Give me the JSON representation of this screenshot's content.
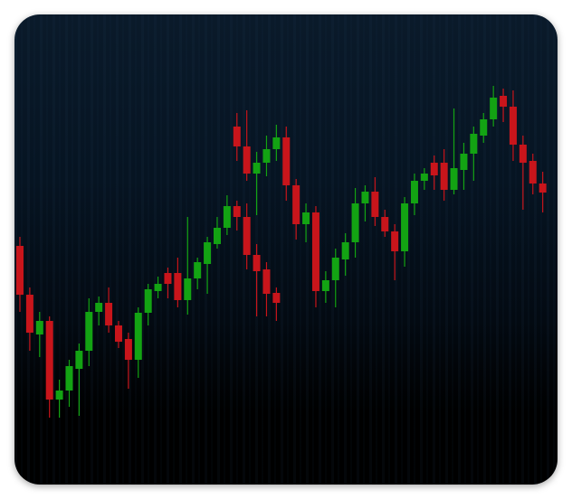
{
  "chart_data": {
    "type": "candlestick",
    "x": [
      0,
      1,
      2,
      3,
      4,
      5,
      6,
      7,
      8,
      9,
      10,
      11,
      12,
      13,
      14,
      15,
      16,
      17,
      18,
      19,
      20,
      21,
      22,
      23,
      24,
      25,
      26,
      22,
      23,
      24,
      25,
      26,
      27,
      28,
      29,
      30,
      31,
      32,
      33,
      34,
      35,
      36,
      37,
      38,
      39,
      40,
      41,
      42,
      43,
      44,
      45,
      46,
      47,
      48,
      49,
      50,
      51,
      52,
      53
    ],
    "open": [
      264,
      210,
      166,
      181,
      94,
      104,
      128,
      148,
      191,
      201,
      176,
      161,
      138,
      190,
      214,
      234,
      234,
      204,
      228,
      244,
      266,
      284,
      308,
      296,
      254,
      238,
      212,
      396,
      374,
      344,
      356,
      371,
      384,
      331,
      288,
      301,
      214,
      226,
      249,
      268,
      311,
      324,
      296,
      280,
      258,
      311,
      336,
      356,
      356,
      326,
      348,
      366,
      386,
      404,
      430,
      418,
      376,
      358,
      333
    ],
    "high": [
      274,
      218,
      191,
      186,
      116,
      138,
      156,
      206,
      208,
      218,
      181,
      168,
      196,
      222,
      230,
      240,
      251,
      296,
      251,
      274,
      296,
      320,
      314,
      311,
      266,
      246,
      218,
      411,
      414,
      368,
      386,
      398,
      396,
      338,
      311,
      308,
      236,
      261,
      278,
      328,
      331,
      340,
      304,
      288,
      318,
      344,
      350,
      364,
      371,
      416,
      378,
      396,
      411,
      441,
      438,
      436,
      386,
      366,
      346
    ],
    "low": [
      191,
      148,
      141,
      74,
      74,
      86,
      76,
      131,
      176,
      168,
      151,
      106,
      118,
      176,
      206,
      206,
      196,
      188,
      216,
      211,
      261,
      276,
      281,
      238,
      186,
      186,
      181,
      358,
      336,
      298,
      341,
      358,
      314,
      271,
      268,
      196,
      201,
      196,
      231,
      251,
      291,
      286,
      274,
      226,
      241,
      298,
      326,
      326,
      314,
      321,
      326,
      336,
      378,
      396,
      401,
      358,
      304,
      321,
      301
    ],
    "close": [
      210,
      168,
      181,
      94,
      104,
      131,
      148,
      191,
      201,
      176,
      158,
      138,
      190,
      216,
      222,
      222,
      204,
      228,
      246,
      268,
      284,
      308,
      296,
      254,
      236,
      211,
      201,
      374,
      344,
      356,
      371,
      384,
      331,
      288,
      301,
      214,
      226,
      251,
      268,
      311,
      324,
      296,
      280,
      258,
      311,
      336,
      344,
      342,
      326,
      350,
      366,
      388,
      404,
      428,
      418,
      376,
      356,
      333,
      323
    ],
    "up_color": "#13a313",
    "down_color": "#c8151b",
    "xlim": [
      -0.55,
      54.5
    ],
    "ylim": [
      0,
      520
    ]
  }
}
